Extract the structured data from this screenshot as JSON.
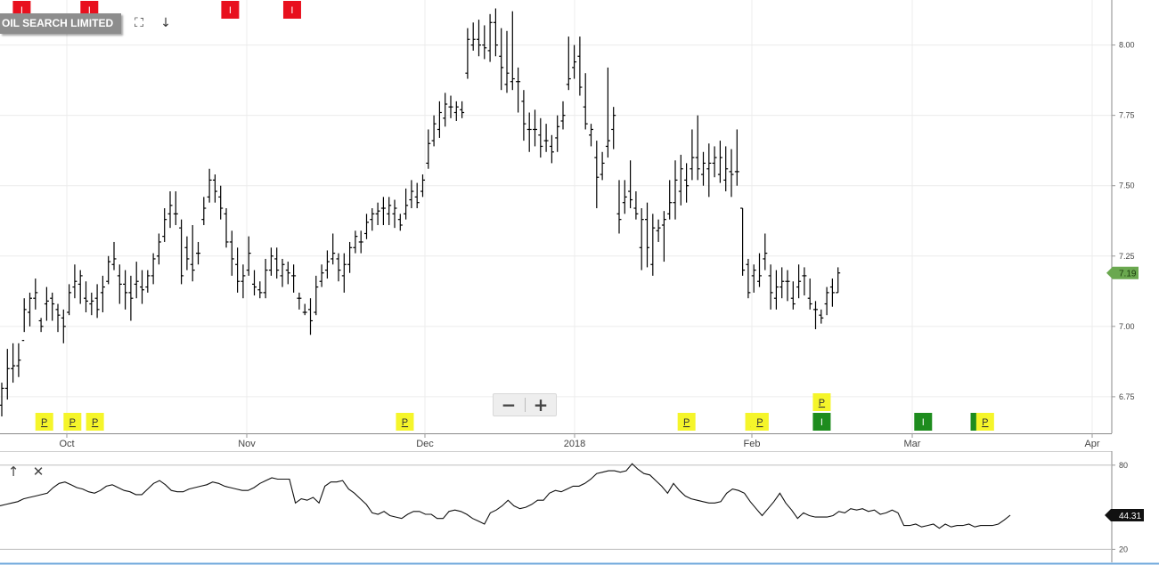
{
  "chart_data": [
    {
      "type": "ohlc",
      "title": "OIL SEARCH LIMITED",
      "ylim": [
        6.62,
        8.16
      ],
      "yticks": [
        "6.75",
        "7.00",
        "7.25",
        "7.50",
        "7.75",
        "8.00"
      ],
      "xticks": [
        "Oct",
        "Nov",
        "Dec",
        "2018",
        "Feb",
        "Mar",
        "Apr"
      ],
      "last_price": "7.19",
      "last_price_color": "#6aa84f",
      "bar_color": "#000000",
      "bars": [
        [
          6.72,
          6.8,
          6.68,
          6.78
        ],
        [
          6.78,
          6.92,
          6.74,
          6.85
        ],
        [
          6.85,
          6.94,
          6.8,
          6.86
        ],
        [
          6.86,
          6.94,
          6.82,
          6.88
        ],
        [
          6.95,
          7.1,
          6.98,
          7.06
        ],
        [
          7.05,
          7.12,
          7.0,
          7.1
        ],
        [
          7.1,
          7.17,
          7.06,
          7.12
        ],
        [
          7.02,
          7.03,
          6.98,
          7.0
        ],
        [
          7.08,
          7.14,
          7.02,
          7.09
        ],
        [
          7.1,
          7.12,
          7.02,
          7.08
        ],
        [
          7.06,
          7.08,
          6.98,
          7.04
        ],
        [
          7.03,
          7.06,
          6.94,
          7.0
        ],
        [
          7.05,
          7.15,
          7.04,
          7.12
        ],
        [
          7.14,
          7.22,
          7.1,
          7.16
        ],
        [
          7.15,
          7.2,
          7.08,
          7.18
        ],
        [
          7.1,
          7.16,
          7.05,
          7.09
        ],
        [
          7.08,
          7.12,
          7.04,
          7.09
        ],
        [
          7.1,
          7.15,
          7.03,
          7.06
        ],
        [
          7.12,
          7.18,
          7.05,
          7.14
        ],
        [
          7.16,
          7.25,
          7.15,
          7.23
        ],
        [
          7.22,
          7.3,
          7.2,
          7.24
        ],
        [
          7.18,
          7.22,
          7.08,
          7.15
        ],
        [
          7.15,
          7.2,
          7.06,
          7.12
        ],
        [
          7.12,
          7.18,
          7.02,
          7.1
        ],
        [
          7.15,
          7.23,
          7.1,
          7.16
        ],
        [
          7.14,
          7.2,
          7.08,
          7.13
        ],
        [
          7.14,
          7.2,
          7.12,
          7.18
        ],
        [
          7.18,
          7.26,
          7.15,
          7.24
        ],
        [
          7.25,
          7.33,
          7.22,
          7.3
        ],
        [
          7.32,
          7.42,
          7.3,
          7.38
        ],
        [
          7.4,
          7.48,
          7.35,
          7.43
        ],
        [
          7.4,
          7.48,
          7.36,
          7.4
        ],
        [
          7.35,
          7.38,
          7.15,
          7.18
        ],
        [
          7.28,
          7.32,
          7.2,
          7.24
        ],
        [
          7.22,
          7.36,
          7.16,
          7.2
        ],
        [
          7.26,
          7.3,
          7.22,
          7.26
        ],
        [
          7.38,
          7.46,
          7.36,
          7.42
        ],
        [
          7.46,
          7.56,
          7.44,
          7.52
        ],
        [
          7.52,
          7.54,
          7.44,
          7.48
        ],
        [
          7.46,
          7.5,
          7.38,
          7.42
        ],
        [
          7.4,
          7.42,
          7.28,
          7.3
        ],
        [
          7.3,
          7.34,
          7.18,
          7.24
        ],
        [
          7.22,
          7.28,
          7.12,
          7.16
        ],
        [
          7.16,
          7.22,
          7.1,
          7.18
        ],
        [
          7.2,
          7.32,
          7.18,
          7.26
        ],
        [
          7.15,
          7.2,
          7.11,
          7.14
        ],
        [
          7.13,
          7.16,
          7.1,
          7.12
        ],
        [
          7.12,
          7.24,
          7.1,
          7.2
        ],
        [
          7.2,
          7.28,
          7.18,
          7.25
        ],
        [
          7.24,
          7.28,
          7.17,
          7.2
        ],
        [
          7.18,
          7.24,
          7.14,
          7.22
        ],
        [
          7.2,
          7.23,
          7.15,
          7.19
        ],
        [
          7.18,
          7.22,
          7.12,
          7.18
        ],
        [
          7.1,
          7.12,
          7.06,
          7.1
        ],
        [
          7.05,
          7.08,
          7.04,
          7.05
        ],
        [
          7.06,
          7.1,
          6.97,
          7.02
        ],
        [
          7.05,
          7.18,
          7.04,
          7.14
        ],
        [
          7.16,
          7.22,
          7.14,
          7.19
        ],
        [
          7.2,
          7.27,
          7.17,
          7.23
        ],
        [
          7.24,
          7.33,
          7.22,
          7.26
        ],
        [
          7.24,
          7.26,
          7.16,
          7.2
        ],
        [
          7.18,
          7.26,
          7.12,
          7.22
        ],
        [
          7.22,
          7.3,
          7.19,
          7.28
        ],
        [
          7.28,
          7.34,
          7.26,
          7.32
        ],
        [
          7.3,
          7.34,
          7.26,
          7.3
        ],
        [
          7.33,
          7.4,
          7.31,
          7.37
        ],
        [
          7.38,
          7.42,
          7.34,
          7.4
        ],
        [
          7.4,
          7.44,
          7.36,
          7.41
        ],
        [
          7.42,
          7.46,
          7.36,
          7.42
        ],
        [
          7.4,
          7.46,
          7.36,
          7.43
        ],
        [
          7.4,
          7.45,
          7.35,
          7.42
        ],
        [
          7.38,
          7.4,
          7.34,
          7.36
        ],
        [
          7.4,
          7.49,
          7.38,
          7.43
        ],
        [
          7.45,
          7.52,
          7.42,
          7.48
        ],
        [
          7.46,
          7.51,
          7.42,
          7.44
        ],
        [
          7.48,
          7.54,
          7.46,
          7.52
        ],
        [
          7.58,
          7.7,
          7.56,
          7.65
        ],
        [
          7.66,
          7.75,
          7.64,
          7.72
        ],
        [
          7.7,
          7.8,
          7.67,
          7.76
        ],
        [
          7.74,
          7.83,
          7.71,
          7.79
        ],
        [
          7.78,
          7.82,
          7.74,
          7.78
        ],
        [
          7.76,
          7.8,
          7.73,
          7.78
        ],
        [
          7.77,
          7.8,
          7.74,
          7.76
        ],
        [
          7.9,
          8.06,
          7.88,
          8.02
        ],
        [
          8.0,
          8.08,
          7.98,
          8.02
        ],
        [
          8.02,
          8.09,
          7.96,
          8.0
        ],
        [
          8.0,
          8.07,
          7.95,
          7.99
        ],
        [
          7.98,
          8.11,
          7.94,
          8.08
        ],
        [
          8.08,
          8.13,
          7.96,
          8.0
        ],
        [
          7.96,
          8.06,
          7.84,
          7.92
        ],
        [
          7.86,
          8.05,
          7.83,
          7.9
        ],
        [
          7.87,
          8.12,
          7.84,
          7.88
        ],
        [
          7.87,
          7.92,
          7.76,
          7.87
        ],
        [
          7.8,
          7.84,
          7.66,
          7.72
        ],
        [
          7.7,
          7.76,
          7.62,
          7.7
        ],
        [
          7.7,
          7.77,
          7.64,
          7.7
        ],
        [
          7.68,
          7.74,
          7.6,
          7.64
        ],
        [
          7.66,
          7.72,
          7.62,
          7.66
        ],
        [
          7.64,
          7.68,
          7.58,
          7.62
        ],
        [
          7.67,
          7.75,
          7.62,
          7.71
        ],
        [
          7.73,
          7.8,
          7.7,
          7.75
        ],
        [
          7.86,
          8.03,
          7.84,
          7.88
        ],
        [
          7.92,
          8.0,
          7.88,
          7.94
        ],
        [
          7.96,
          8.03,
          7.82,
          7.85
        ],
        [
          7.78,
          7.9,
          7.7,
          7.72
        ],
        [
          7.68,
          7.72,
          7.64,
          7.7
        ],
        [
          7.6,
          7.66,
          7.42,
          7.53
        ],
        [
          7.54,
          7.62,
          7.52,
          7.58
        ],
        [
          7.64,
          7.92,
          7.6,
          7.66
        ],
        [
          7.7,
          7.78,
          7.63,
          7.75
        ],
        [
          7.4,
          7.52,
          7.33,
          7.38
        ],
        [
          7.44,
          7.52,
          7.4,
          7.46
        ],
        [
          7.48,
          7.59,
          7.42,
          7.45
        ],
        [
          7.42,
          7.48,
          7.38,
          7.4
        ],
        [
          7.28,
          7.42,
          7.2,
          7.38
        ],
        [
          7.38,
          7.44,
          7.21,
          7.28
        ],
        [
          7.22,
          7.4,
          7.18,
          7.35
        ],
        [
          7.34,
          7.38,
          7.3,
          7.35
        ],
        [
          7.36,
          7.41,
          7.23,
          7.38
        ],
        [
          7.4,
          7.52,
          7.38,
          7.44
        ],
        [
          7.44,
          7.59,
          7.38,
          7.52
        ],
        [
          7.48,
          7.61,
          7.43,
          7.56
        ],
        [
          7.52,
          7.58,
          7.44,
          7.5
        ],
        [
          7.56,
          7.7,
          7.52,
          7.6
        ],
        [
          7.6,
          7.75,
          7.52,
          7.56
        ],
        [
          7.54,
          7.62,
          7.5,
          7.58
        ],
        [
          7.56,
          7.65,
          7.46,
          7.58
        ],
        [
          7.58,
          7.64,
          7.53,
          7.6
        ],
        [
          7.54,
          7.66,
          7.51,
          7.6
        ],
        [
          7.52,
          7.64,
          7.48,
          7.56
        ],
        [
          7.55,
          7.63,
          7.46,
          7.54
        ],
        [
          7.55,
          7.7,
          7.5,
          7.55
        ],
        [
          7.42,
          7.42,
          7.18,
          7.2
        ],
        [
          7.22,
          7.24,
          7.1,
          7.12
        ],
        [
          7.18,
          7.22,
          7.12,
          7.2
        ],
        [
          7.16,
          7.26,
          7.14,
          7.18
        ],
        [
          7.24,
          7.33,
          7.2,
          7.26
        ],
        [
          7.18,
          7.22,
          7.06,
          7.12
        ],
        [
          7.1,
          7.2,
          7.06,
          7.14
        ],
        [
          7.14,
          7.21,
          7.1,
          7.16
        ],
        [
          7.16,
          7.2,
          7.09,
          7.16
        ],
        [
          7.1,
          7.16,
          7.06,
          7.08
        ],
        [
          7.14,
          7.22,
          7.1,
          7.16
        ],
        [
          7.18,
          7.21,
          7.11,
          7.18
        ],
        [
          7.1,
          7.17,
          7.06,
          7.08
        ],
        [
          7.06,
          7.09,
          6.99,
          7.06
        ],
        [
          7.04,
          7.06,
          7.01,
          7.03
        ],
        [
          7.08,
          7.14,
          7.04,
          7.12
        ],
        [
          7.14,
          7.17,
          7.07,
          7.12
        ],
        [
          7.12,
          7.21,
          7.12,
          7.19
        ]
      ],
      "markers_bottom": [
        {
          "label": "P",
          "date": "2017-09-27",
          "color": "#f5f52a"
        },
        {
          "label": "P",
          "date": "2017-10-02",
          "color": "#f5f52a"
        },
        {
          "label": "P",
          "date": "2017-10-06",
          "color": "#f5f52a"
        },
        {
          "label": "P",
          "date": "2017-11-30",
          "color": "#f5f52a"
        },
        {
          "label": "P",
          "date": "2018-01-19",
          "color": "#f5f52a"
        },
        {
          "label": "P",
          "date": "2018-01-31",
          "color": "#f5f52a"
        },
        {
          "label": "P",
          "date": "2018-02-01",
          "color": "#f5f52a"
        },
        {
          "label": "I",
          "date": "2018-02-12",
          "color": "#1e8c1e"
        },
        {
          "label": "I",
          "date": "2018-03-02",
          "color": "#1e8c1e"
        },
        {
          "label": "",
          "date": "2018-03-12",
          "color": "#1e8c1e"
        },
        {
          "label": "P",
          "date": "2018-03-13",
          "color": "#f5f52a"
        }
      ],
      "markers_stacked": [
        {
          "label": "P",
          "date": "2018-02-12",
          "color": "#f5f52a"
        }
      ],
      "markers_top": [
        {
          "label": "I",
          "date": "2017-09-23",
          "color": "#e8101e"
        },
        {
          "label": "I",
          "date": "2017-10-05",
          "color": "#e8101e"
        },
        {
          "label": "I",
          "date": "2017-10-30",
          "color": "#e8101e"
        },
        {
          "label": "I",
          "date": "2017-11-10",
          "color": "#e8101e"
        }
      ]
    },
    {
      "type": "line",
      "ylim": [
        12,
        90
      ],
      "yticks": [
        "20",
        "80"
      ],
      "last_value": "44.31",
      "values": [
        51,
        52,
        53,
        54,
        56,
        57,
        58,
        59,
        60,
        64,
        67,
        68,
        66,
        64,
        63,
        61,
        60,
        62,
        65,
        66,
        64,
        62,
        61,
        59,
        59,
        63,
        67,
        69,
        66,
        62,
        61,
        61,
        63,
        64,
        65,
        66,
        68,
        67,
        65,
        64,
        63,
        62,
        62,
        64,
        67,
        69,
        71,
        70,
        70,
        70,
        53,
        56,
        55,
        57,
        53,
        65,
        68,
        68,
        69,
        63,
        60,
        56,
        52,
        46,
        45,
        47,
        44,
        43,
        42,
        45,
        47,
        47,
        45,
        45,
        42,
        42,
        47,
        48,
        47,
        45,
        42,
        40,
        38,
        46,
        48,
        51,
        55,
        51,
        49,
        50,
        52,
        55,
        55,
        60,
        62,
        61,
        63,
        65,
        65,
        67,
        70,
        74,
        75,
        76,
        76,
        75,
        76,
        81,
        77,
        74,
        73,
        69,
        65,
        60,
        67,
        62,
        58,
        56,
        55,
        54,
        53,
        53,
        54,
        60,
        63,
        62,
        60,
        54,
        49,
        44,
        49,
        54,
        60,
        53,
        48,
        42,
        46,
        44,
        43,
        43,
        43,
        44,
        47,
        46,
        49,
        48,
        49,
        47,
        48,
        45,
        46,
        48,
        46,
        37,
        37,
        38,
        36,
        37,
        38,
        35,
        38,
        36,
        37,
        37,
        38,
        36,
        37,
        37,
        37,
        38,
        41,
        44.31
      ]
    }
  ],
  "toolbar": {
    "fullscreen_icon": "fullscreen-icon",
    "download_icon": "arrow-down-icon",
    "zoom_out_label": "−",
    "zoom_in_label": "+",
    "move_up_icon": "arrow-up-icon",
    "close_pane_icon": "close-icon"
  }
}
